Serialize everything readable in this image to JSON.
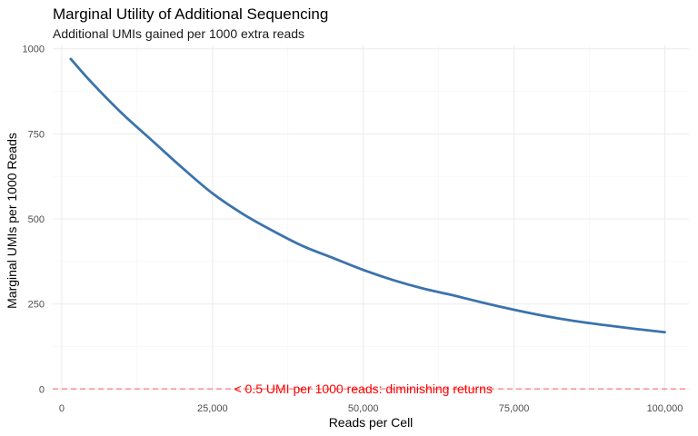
{
  "chart_data": {
    "type": "line",
    "title": "Marginal Utility of Additional Sequencing",
    "subtitle": "Additional UMIs gained per 1000 extra reads",
    "xlabel": "Reads per Cell",
    "ylabel": "Marginal UMIs per 1000 Reads",
    "xlim": [
      -1500,
      104000
    ],
    "ylim": [
      -10,
      1010
    ],
    "x_ticks": [
      0,
      25000,
      50000,
      75000,
      100000
    ],
    "x_tick_labels": [
      "0",
      "25,000",
      "50,000",
      "75,000",
      "100,000"
    ],
    "y_ticks": [
      0,
      250,
      500,
      750,
      1000
    ],
    "y_tick_labels": [
      "0",
      "250",
      "500",
      "750",
      "1000"
    ],
    "grid": true,
    "legend": "none",
    "series": [
      {
        "color": "#3b73ad",
        "x": [
          1500,
          5000,
          10000,
          15000,
          20000,
          25000,
          30000,
          35000,
          40000,
          45000,
          50000,
          55000,
          60000,
          65000,
          70000,
          75000,
          80000,
          85000,
          90000,
          95000,
          100000
        ],
        "y": [
          970,
          900,
          810,
          730,
          650,
          575,
          515,
          465,
          420,
          385,
          350,
          320,
          295,
          275,
          253,
          233,
          215,
          200,
          188,
          177,
          167
        ]
      }
    ],
    "hline": {
      "y": 0.5,
      "color": "#ff0000",
      "style": "dashed",
      "label": "< 0.5 UMI per 1000 reads: diminishing returns",
      "label_x": 50000
    }
  }
}
